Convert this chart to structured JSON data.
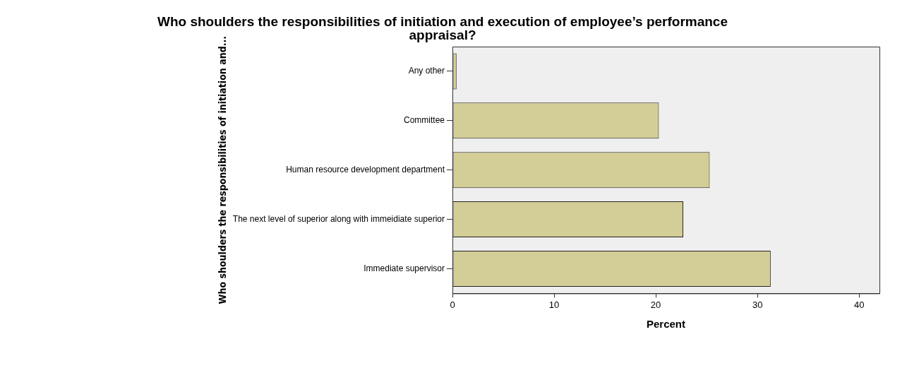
{
  "chart_data": {
    "type": "bar",
    "orientation": "horizontal",
    "title": "Who shoulders the responsibilities of initiation and execution of employee’s performance appraisal?",
    "xlabel": "Percent",
    "ylabel": "Who shoulders the responsibilities of initiation and...",
    "categories": [
      "Any other",
      "Committee",
      "Human resource development department",
      "The next level of superior along with immeidiate superior",
      "Immediate supervisor"
    ],
    "values": [
      0.4,
      20.3,
      25.3,
      22.7,
      31.3
    ],
    "color": "#d3cd97",
    "xlim": [
      0,
      42
    ],
    "xticks": [
      0,
      10,
      20,
      30,
      40
    ],
    "grid": false,
    "legend": false
  }
}
